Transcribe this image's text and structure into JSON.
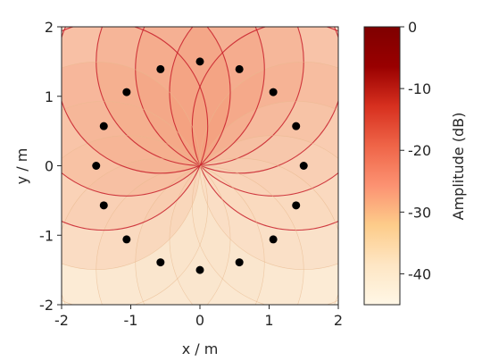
{
  "chart_data": {
    "type": "heatmap",
    "title": "",
    "xlabel": "x / m",
    "ylabel": "y / m",
    "xlim": [
      -2,
      2
    ],
    "ylim": [
      -2,
      2
    ],
    "xticks": [
      -2,
      -1,
      0,
      1,
      2
    ],
    "yticks": [
      -2,
      -1,
      0,
      1,
      2
    ],
    "xtick_labels": [
      "-2",
      "-1",
      "0",
      "1",
      "2"
    ],
    "ytick_labels": [
      "-2",
      "-1",
      "0",
      "1",
      "2"
    ],
    "field_description_source_point": [
      0,
      0
    ],
    "grid": false,
    "colorbar": {
      "label": "Amplitude (dB)",
      "range": [
        -45,
        0
      ],
      "ticks": [
        0,
        -10,
        -20,
        -30,
        -40
      ],
      "tick_labels": [
        "0",
        "-10",
        "-20",
        "-30",
        "-40"
      ],
      "colormap": "OrRd",
      "colors": [
        "#fff7e6",
        "#fee6c4",
        "#fdcc8a",
        "#fc9272",
        "#ef6548",
        "#d7301f",
        "#990000",
        "#7f0000"
      ]
    },
    "loudspeakers": {
      "marker_color": "#000000",
      "points": [
        [
          0.0,
          1.5
        ],
        [
          0.57,
          1.39
        ],
        [
          1.06,
          1.06
        ],
        [
          1.39,
          0.57
        ],
        [
          1.5,
          0.0
        ],
        [
          1.39,
          -0.57
        ],
        [
          1.06,
          -1.06
        ],
        [
          0.57,
          -1.39
        ],
        [
          0.0,
          -1.5
        ],
        [
          -0.57,
          -1.39
        ],
        [
          -1.06,
          -1.06
        ],
        [
          -1.39,
          -0.57
        ],
        [
          -1.5,
          0.0
        ],
        [
          -1.39,
          0.57
        ],
        [
          -1.06,
          1.06
        ],
        [
          -0.57,
          1.39
        ]
      ]
    }
  }
}
